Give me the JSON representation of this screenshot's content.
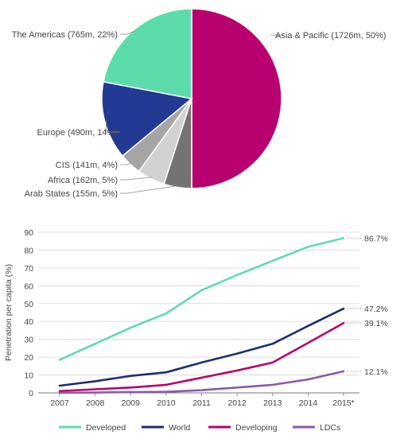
{
  "chart_data": [
    {
      "type": "pie",
      "slices": [
        {
          "label": "Asia & Pacific (1726m, 50%)",
          "value": 50,
          "color": "#b8006e",
          "label_side": "right"
        },
        {
          "label": "Arab States (155m, 5%)",
          "value": 5,
          "color": "#737373",
          "label_side": "left"
        },
        {
          "label": "Africa (162m, 5%)",
          "value": 5,
          "color": "#d2d2d2",
          "label_side": "left"
        },
        {
          "label": "CIS (141m, 4%)",
          "value": 4,
          "color": "#a5a5a5",
          "label_side": "left"
        },
        {
          "label": "Europe (490m, 14%)",
          "value": 14,
          "color": "#233a94",
          "label_side": "left"
        },
        {
          "label": "The Americas (765m, 22%)",
          "value": 22,
          "color": "#5ddcab",
          "label_side": "left"
        }
      ]
    },
    {
      "type": "line",
      "ylabel": "Penetration per capita (%)",
      "categories": [
        "2007",
        "2008",
        "2009",
        "2010",
        "2011",
        "2012",
        "2013",
        "2014",
        "2015*"
      ],
      "ylim": [
        0,
        90
      ],
      "yticks": [
        0,
        10,
        20,
        30,
        40,
        50,
        60,
        70,
        80,
        90
      ],
      "grid": true,
      "legend_position": "bottom",
      "series": [
        {
          "name": "Developed",
          "color": "#5ddcab",
          "values": [
            18.5,
            27.5,
            36.5,
            44.5,
            57.5,
            66.0,
            74.0,
            81.8,
            86.7
          ],
          "end_label": "86.7%"
        },
        {
          "name": "World",
          "color": "#1c2f6e",
          "values": [
            4.0,
            6.5,
            9.5,
            11.5,
            17.0,
            22.0,
            27.5,
            37.5,
            47.2
          ],
          "end_label": "47.2%"
        },
        {
          "name": "Developing",
          "color": "#b8006e",
          "values": [
            1.0,
            2.0,
            3.0,
            4.5,
            8.5,
            12.5,
            17.0,
            28.0,
            39.1
          ],
          "end_label": "39.1%"
        },
        {
          "name": "LDCs",
          "color": "#8a5aa8",
          "values": [
            0.0,
            0.2,
            0.4,
            0.6,
            1.5,
            3.0,
            4.5,
            7.5,
            12.1
          ],
          "end_label": "12.1%"
        }
      ]
    }
  ]
}
